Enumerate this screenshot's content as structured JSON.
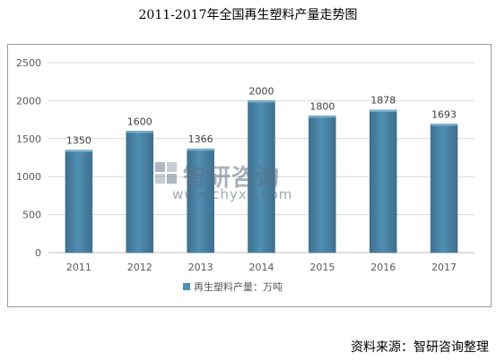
{
  "header": {
    "title": "2011-2017年全国再生塑料产量走势图"
  },
  "footer": {
    "source": "资料来源：智研咨询整理"
  },
  "watermark": {
    "name": "智研咨询",
    "url": "www.chyxx.com"
  },
  "colors": {
    "bar": "#4f8fb3",
    "bar_top": "#7cb3d0",
    "bar_dark": "#3e6f8e",
    "grid": "#d9d9d9",
    "axis_text": "#595959"
  },
  "chart_data": {
    "type": "bar",
    "title": "",
    "xlabel": "",
    "ylabel": "",
    "categories": [
      "2011",
      "2012",
      "2013",
      "2014",
      "2015",
      "2016",
      "2017"
    ],
    "series": [
      {
        "name": "再生塑料产量：万吨",
        "values": [
          1350,
          1600,
          1366,
          2000,
          1800,
          1878,
          1693
        ]
      }
    ],
    "ylim": [
      0,
      2500
    ],
    "yticks": [
      0,
      500,
      1000,
      1500,
      2000,
      2500
    ],
    "grid": true,
    "legend": "bottom"
  }
}
